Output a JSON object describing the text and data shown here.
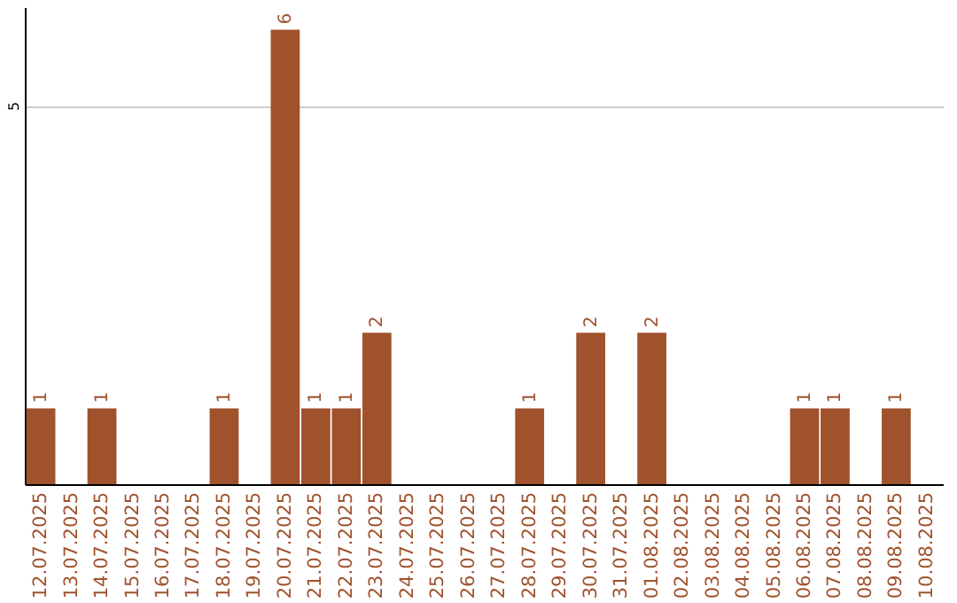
{
  "chart_data": {
    "type": "bar",
    "categories": [
      "12.07.2025",
      "13.07.2025",
      "14.07.2025",
      "15.07.2025",
      "16.07.2025",
      "17.07.2025",
      "18.07.2025",
      "19.07.2025",
      "20.07.2025",
      "21.07.2025",
      "22.07.2025",
      "23.07.2025",
      "24.07.2025",
      "25.07.2025",
      "26.07.2025",
      "27.07.2025",
      "28.07.2025",
      "29.07.2025",
      "30.07.2025",
      "31.07.2025",
      "01.08.2025",
      "02.08.2025",
      "03.08.2025",
      "04.08.2025",
      "05.08.2025",
      "06.08.2025",
      "07.08.2025",
      "08.08.2025",
      "09.08.2025",
      "10.08.2025"
    ],
    "series": [
      {
        "color": "#a0522d",
        "values": [
          1,
          0,
          1,
          0,
          0,
          0,
          1,
          0,
          6,
          1,
          1,
          2,
          0,
          0,
          0,
          0,
          1,
          0,
          2,
          0,
          2,
          0,
          0,
          0,
          0,
          1,
          1,
          0,
          1,
          0
        ],
        "value_labels": [
          "1",
          null,
          "1",
          null,
          null,
          null,
          "1",
          null,
          "6",
          "1",
          "1",
          "2",
          null,
          null,
          null,
          null,
          "1",
          null,
          "2",
          null,
          "2",
          null,
          null,
          null,
          null,
          "1",
          "1",
          null,
          "1",
          null
        ]
      }
    ],
    "ylim": [
      0,
      6.3
    ],
    "yticks": [
      5
    ],
    "grid": "y"
  }
}
